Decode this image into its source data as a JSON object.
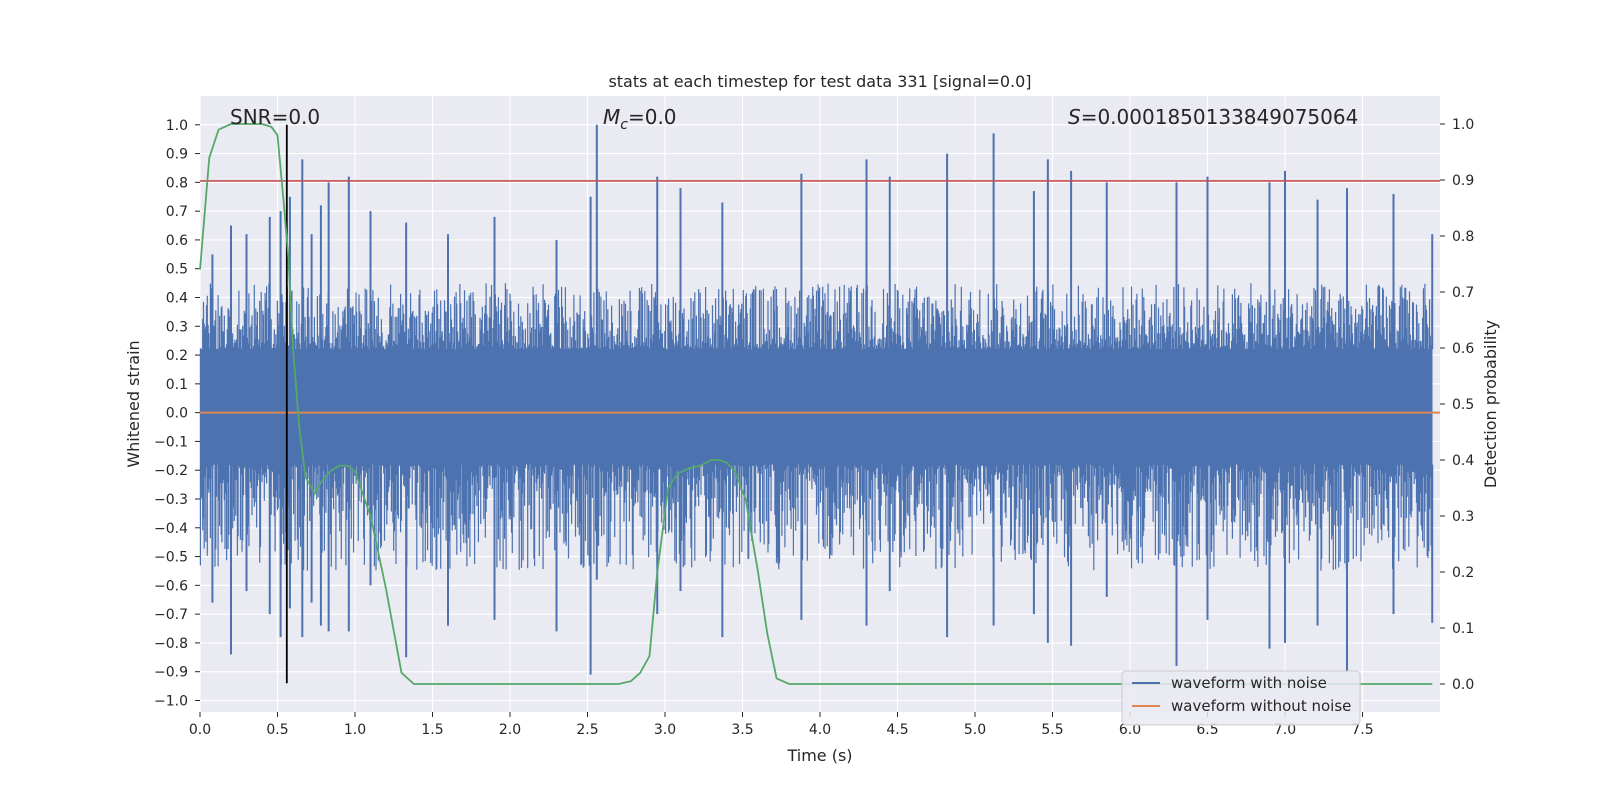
{
  "chart_data": {
    "type": "line",
    "title": "stats at each timestep for test data 331 [signal=0.0]",
    "xlabel": "Time (s)",
    "ylabel": "Whitened strain",
    "y2label": "Detection probability",
    "xlim": [
      0.0,
      8.0
    ],
    "ylim": [
      -1.04,
      1.1
    ],
    "y2lim": [
      -0.05,
      1.05
    ],
    "xticks": [
      0.0,
      0.5,
      1.0,
      1.5,
      2.0,
      2.5,
      3.0,
      3.5,
      4.0,
      4.5,
      5.0,
      5.5,
      6.0,
      6.5,
      7.0,
      7.5
    ],
    "xtick_labels": [
      "0.0",
      "0.5",
      "1.0",
      "1.5",
      "2.0",
      "2.5",
      "3.0",
      "3.5",
      "4.0",
      "4.5",
      "5.0",
      "5.5",
      "6.0",
      "6.5",
      "7.0",
      "7.5"
    ],
    "yticks": [
      -1.0,
      -0.9,
      -0.8,
      -0.7,
      -0.6,
      -0.5,
      -0.4,
      -0.3,
      -0.2,
      -0.1,
      0.0,
      0.1,
      0.2,
      0.3,
      0.4,
      0.5,
      0.6,
      0.7,
      0.8,
      0.9,
      1.0
    ],
    "ytick_labels": [
      "−1.0",
      "−0.9",
      "−0.8",
      "−0.7",
      "−0.6",
      "−0.5",
      "−0.4",
      "−0.3",
      "−0.2",
      "−0.1",
      "0.0",
      "0.1",
      "0.2",
      "0.3",
      "0.4",
      "0.5",
      "0.6",
      "0.7",
      "0.8",
      "0.9",
      "1.0"
    ],
    "y2ticks": [
      0.0,
      0.1,
      0.2,
      0.3,
      0.4,
      0.5,
      0.6,
      0.7,
      0.8,
      0.9,
      1.0
    ],
    "y2tick_labels": [
      "0.0",
      "0.1",
      "0.2",
      "0.3",
      "0.4",
      "0.5",
      "0.6",
      "0.7",
      "0.8",
      "0.9",
      "1.0"
    ],
    "grid": true,
    "annotations": {
      "snr_prefix": "SNR",
      "snr_value": "=0.0",
      "mc_symbol": "M",
      "mc_subscript": "c",
      "mc_value": "=0.0",
      "s_symbol": "S",
      "s_value": "=0.0001850133849075064"
    },
    "legend": {
      "placement": "lower-right",
      "entries": [
        {
          "label": "waveform with noise",
          "color": "#4c72b0"
        },
        {
          "label": "waveform without noise",
          "color": "#dd8452"
        }
      ]
    },
    "series": [
      {
        "name": "waveform with noise",
        "color": "#4c72b0",
        "style": "dense noise trace",
        "core_band": [
          -0.18,
          0.22
        ],
        "typical_envelope": [
          -0.55,
          0.45
        ],
        "x": [
          0.08,
          0.2,
          0.3,
          0.45,
          0.52,
          0.58,
          0.66,
          0.72,
          0.78,
          0.83,
          0.96,
          1.1,
          1.33,
          1.6,
          1.9,
          2.3,
          2.52,
          2.56,
          2.95,
          3.1,
          3.37,
          3.88,
          4.3,
          4.45,
          4.82,
          5.12,
          5.38,
          5.47,
          5.62,
          5.85,
          6.3,
          6.5,
          6.9,
          7.0,
          7.21,
          7.4,
          7.7,
          7.95
        ],
        "peak_high": [
          0.55,
          0.65,
          0.62,
          0.68,
          0.7,
          0.75,
          0.88,
          0.62,
          0.72,
          0.8,
          0.82,
          0.7,
          0.66,
          0.62,
          0.68,
          0.6,
          0.75,
          1.0,
          0.82,
          0.78,
          0.73,
          0.83,
          0.88,
          0.82,
          0.9,
          0.97,
          0.77,
          0.88,
          0.84,
          0.8,
          0.8,
          0.82,
          0.8,
          0.84,
          0.74,
          0.78,
          0.76,
          0.62
        ],
        "peak_low": [
          -0.66,
          -0.84,
          -0.62,
          -0.7,
          -0.78,
          -0.68,
          -0.78,
          -0.66,
          -0.74,
          -0.76,
          -0.76,
          -0.6,
          -0.85,
          -0.74,
          -0.72,
          -0.76,
          -0.91,
          -0.58,
          -0.7,
          -0.62,
          -0.78,
          -0.72,
          -0.74,
          -0.62,
          -0.78,
          -0.74,
          -0.7,
          -0.8,
          -0.81,
          -0.64,
          -0.88,
          -0.72,
          -0.82,
          -0.8,
          -0.74,
          -0.9,
          -0.7,
          -0.73
        ]
      },
      {
        "name": "waveform without noise",
        "color": "#dd8452",
        "x": [
          0.0,
          8.0
        ],
        "y": [
          0.0,
          0.0
        ]
      },
      {
        "name": "",
        "axis": "right",
        "color": "#55a868",
        "x": [
          0.0,
          0.06,
          0.12,
          0.2,
          0.3,
          0.4,
          0.46,
          0.5,
          0.54,
          0.57,
          0.6,
          0.64,
          0.68,
          0.7,
          0.74,
          0.78,
          0.84,
          0.9,
          0.95,
          1.0,
          1.1,
          1.2,
          1.3,
          1.38,
          1.5,
          2.0,
          2.5,
          2.7,
          2.78,
          2.84,
          2.9,
          2.95,
          3.02,
          3.08,
          3.15,
          3.23,
          3.3,
          3.35,
          3.4,
          3.45,
          3.52,
          3.6,
          3.66,
          3.72,
          3.8,
          4.0,
          4.5,
          5.0,
          6.0,
          7.0,
          7.95
        ],
        "y": [
          0.74,
          0.94,
          0.99,
          1.0,
          1.0,
          1.0,
          0.995,
          0.98,
          0.86,
          0.76,
          0.6,
          0.46,
          0.37,
          0.36,
          0.34,
          0.36,
          0.38,
          0.39,
          0.39,
          0.38,
          0.3,
          0.17,
          0.02,
          0.0,
          0.0,
          0.0,
          0.0,
          0.0,
          0.005,
          0.02,
          0.05,
          0.2,
          0.35,
          0.375,
          0.385,
          0.39,
          0.4,
          0.4,
          0.395,
          0.38,
          0.33,
          0.2,
          0.09,
          0.01,
          0.0,
          0.0,
          0.0,
          0.0,
          0.0,
          0.0,
          0.0
        ]
      },
      {
        "name": "",
        "color": "#c44e52",
        "x": [
          0.0,
          8.0
        ],
        "y": [
          0.805,
          0.805
        ]
      },
      {
        "name": "",
        "color": "#000000",
        "x": [
          0.56,
          0.56
        ],
        "y": [
          -0.94,
          1.0
        ]
      }
    ]
  }
}
